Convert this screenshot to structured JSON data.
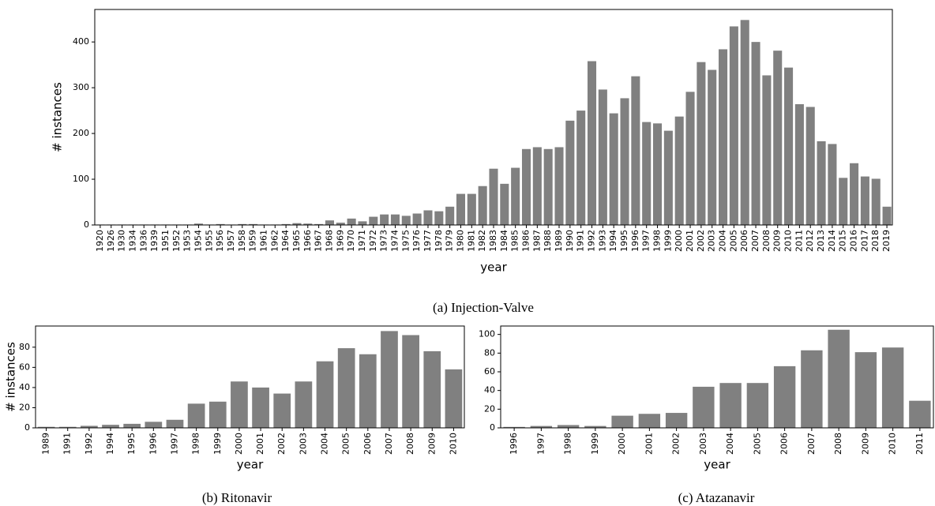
{
  "chart_data": [
    {
      "type": "bar",
      "caption": "(a) Injection-Valve",
      "xlabel": "year",
      "ylabel": "# instances",
      "color": "#808080",
      "categories": [
        "1920",
        "1926",
        "1930",
        "1934",
        "1936",
        "1939",
        "1951",
        "1952",
        "1953",
        "1954",
        "1955",
        "1956",
        "1957",
        "1958",
        "1959",
        "1961",
        "1962",
        "1964",
        "1965",
        "1966",
        "1967",
        "1968",
        "1969",
        "1970",
        "1971",
        "1972",
        "1973",
        "1974",
        "1975",
        "1976",
        "1977",
        "1978",
        "1979",
        "1980",
        "1981",
        "1982",
        "1983",
        "1984",
        "1985",
        "1986",
        "1987",
        "1988",
        "1989",
        "1990",
        "1991",
        "1992",
        "1993",
        "1994",
        "1995",
        "1996",
        "1997",
        "1998",
        "1999",
        "2000",
        "2001",
        "2002",
        "2003",
        "2004",
        "2005",
        "2006",
        "2007",
        "2008",
        "2009",
        "2010",
        "2011",
        "2012",
        "2013",
        "2014",
        "2015",
        "2016",
        "2017",
        "2018",
        "2019"
      ],
      "values": [
        1,
        1,
        1,
        1,
        1,
        1,
        1,
        1,
        1,
        3,
        1,
        2,
        1,
        2,
        2,
        1,
        1,
        2,
        4,
        3,
        2,
        10,
        5,
        14,
        8,
        18,
        23,
        23,
        20,
        25,
        32,
        30,
        40,
        68,
        68,
        85,
        123,
        90,
        125,
        166,
        170,
        166,
        170,
        228,
        250,
        358,
        296,
        244,
        277,
        325,
        225,
        222,
        206,
        237,
        291,
        356,
        339,
        384,
        434,
        448,
        400,
        327,
        381,
        344,
        264,
        258,
        183,
        177,
        103,
        135,
        106,
        101,
        40
      ],
      "ylim": [
        0,
        471
      ],
      "yticks": [
        0,
        100,
        200,
        300,
        400
      ]
    },
    {
      "type": "bar",
      "caption": "(b) Ritonavir",
      "xlabel": "year",
      "ylabel": "# instances",
      "color": "#808080",
      "categories": [
        "1989",
        "1991",
        "1992",
        "1994",
        "1995",
        "1996",
        "1997",
        "1998",
        "1999",
        "2000",
        "2001",
        "2002",
        "2003",
        "2004",
        "2005",
        "2006",
        "2007",
        "2008",
        "2009",
        "2010"
      ],
      "values": [
        1,
        1,
        2,
        3,
        4,
        6,
        8,
        24,
        26,
        46,
        40,
        34,
        46,
        66,
        79,
        73,
        96,
        92,
        76,
        58
      ],
      "ylim": [
        0,
        101
      ],
      "yticks": [
        0,
        20,
        40,
        60,
        80
      ]
    },
    {
      "type": "bar",
      "caption": "(c) Atazanavir",
      "xlabel": "year",
      "color": "#808080",
      "categories": [
        "1996",
        "1997",
        "1998",
        "1999",
        "2000",
        "2001",
        "2002",
        "2003",
        "2004",
        "2005",
        "2006",
        "2007",
        "2008",
        "2009",
        "2010",
        "2011"
      ],
      "values": [
        1,
        2,
        3,
        2,
        13,
        15,
        16,
        44,
        48,
        48,
        66,
        83,
        105,
        81,
        86,
        29
      ],
      "ylim": [
        0,
        109
      ],
      "yticks": [
        0,
        20,
        40,
        60,
        80,
        100
      ]
    }
  ]
}
